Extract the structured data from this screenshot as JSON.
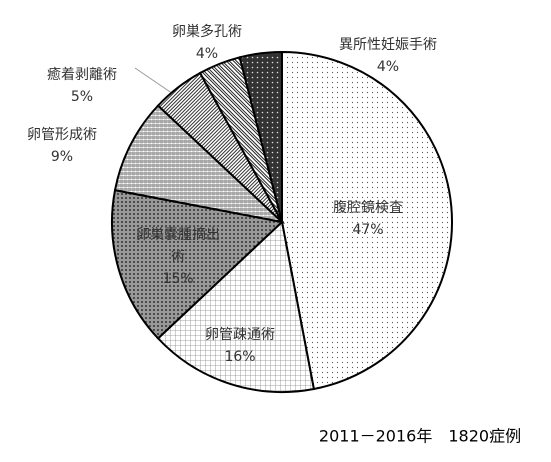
{
  "chart_data": {
    "type": "pie",
    "categories": [
      "腹腔鏡検査",
      "卵管疎通術",
      "卵巣嚢腫摘出術",
      "卵管形成術",
      "癒着剥離術",
      "卵巣多孔術",
      "異所性妊娠手術"
    ],
    "values": [
      47,
      16,
      15,
      9,
      5,
      4,
      4
    ],
    "value_labels": [
      "47%",
      "16%",
      "15%",
      "9%",
      "5%",
      "4%",
      "4%"
    ],
    "colors": [
      "#f4f4f4",
      "#e8e8e8",
      "#c8c8c8",
      "#d8d8d8",
      "#e0e0e0",
      "#b0b0b0",
      "#404040"
    ],
    "annotation": "2011－2016年　1820症例"
  }
}
